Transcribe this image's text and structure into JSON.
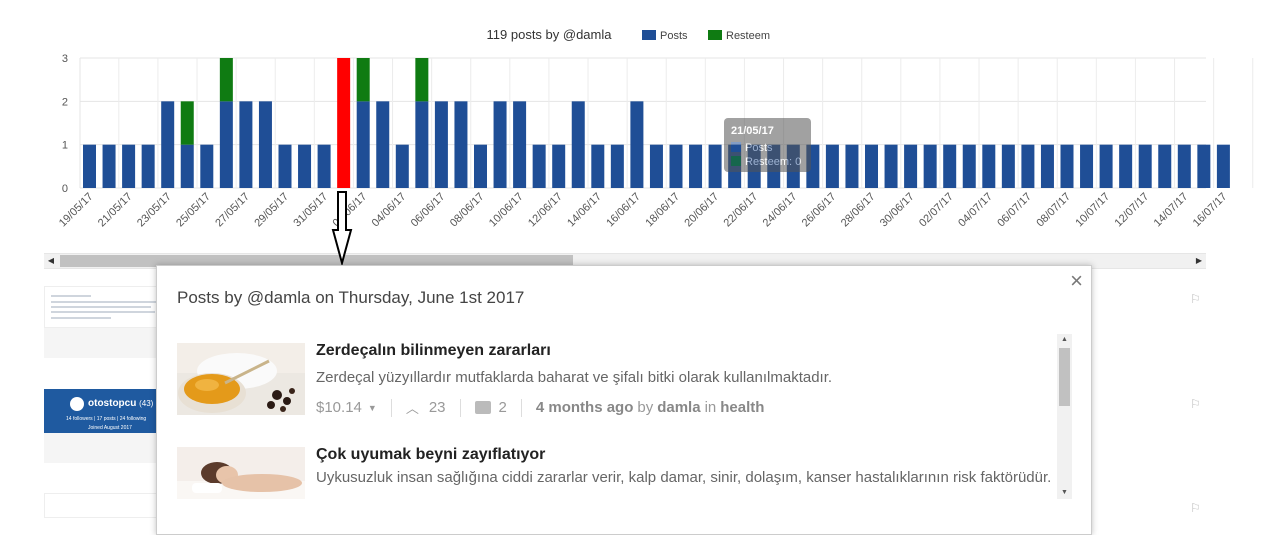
{
  "chart_data": {
    "type": "bar",
    "stacked": true,
    "title": "119 posts by @damla",
    "legend_position": "top-center",
    "grid": true,
    "ylim": [
      0,
      3
    ],
    "yticks": [
      "0",
      "1",
      "2",
      "3"
    ],
    "categories": [
      "19/05/17",
      "20/05/17",
      "21/05/17",
      "22/05/17",
      "23/05/17",
      "24/05/17",
      "25/05/17",
      "26/05/17",
      "27/05/17",
      "28/05/17",
      "29/05/17",
      "30/05/17",
      "31/05/17",
      "01/06/17",
      "02/06/17",
      "03/06/17",
      "04/06/17",
      "05/06/17",
      "06/06/17",
      "07/06/17",
      "08/06/17",
      "09/06/17",
      "10/06/17",
      "11/06/17",
      "12/06/17",
      "13/06/17",
      "14/06/17",
      "15/06/17",
      "16/06/17",
      "17/06/17",
      "18/06/17",
      "19/06/17",
      "20/06/17",
      "21/06/17",
      "22/06/17",
      "23/06/17",
      "24/06/17",
      "25/06/17",
      "26/06/17",
      "27/06/17",
      "28/06/17",
      "29/06/17",
      "30/06/17",
      "01/07/17",
      "02/07/17",
      "03/07/17",
      "04/07/17",
      "05/07/17",
      "06/07/17",
      "07/07/17",
      "08/07/17",
      "09/07/17",
      "10/07/17",
      "11/07/17",
      "12/07/17",
      "13/07/17",
      "14/07/17",
      "15/07/17",
      "16/07/17"
    ],
    "series": [
      {
        "name": "Posts",
        "color": "#1f4e96",
        "values": [
          1,
          1,
          1,
          1,
          2,
          1,
          1,
          2,
          2,
          2,
          1,
          1,
          1,
          3,
          2,
          2,
          1,
          2,
          2,
          2,
          1,
          2,
          2,
          1,
          1,
          2,
          1,
          1,
          2,
          1,
          1,
          1,
          1,
          1,
          1,
          1,
          1,
          1,
          1,
          1,
          1,
          1,
          1,
          1,
          1,
          1,
          1,
          1,
          1,
          1,
          1,
          1,
          1,
          1,
          1,
          1,
          1,
          1,
          1
        ]
      },
      {
        "name": "Resteem",
        "color": "#0f7b12",
        "values": [
          0,
          0,
          0,
          0,
          0,
          1,
          0,
          1,
          0,
          0,
          0,
          0,
          0,
          0,
          1,
          0,
          0,
          1,
          0,
          0,
          0,
          0,
          0,
          0,
          0,
          0,
          0,
          0,
          0,
          0,
          0,
          0,
          0,
          0,
          0,
          0,
          0,
          0,
          0,
          0,
          0,
          0,
          0,
          0,
          0,
          0,
          0,
          0,
          0,
          0,
          0,
          0,
          0,
          0,
          0,
          0,
          0,
          0,
          0
        ]
      }
    ],
    "highlight_index": 13,
    "highlight_color": "#ff0000",
    "tooltip": {
      "title": "21/05/17",
      "posts_label": "Posts",
      "resteem_label": "Resteem: 0"
    }
  },
  "modal": {
    "title": "Posts by @damla on Thursday, June 1st 2017",
    "close_symbol": "×",
    "posts": [
      {
        "title": "Zerdeçalın bilinmeyen zararları",
        "description": "Zerdeçal yüzyıllardır mutfaklarda baharat ve şifalı bitki olarak kullanılmaktadır.",
        "payout": "$10.14",
        "votes": "23",
        "comments": "2",
        "age": "4 months ago",
        "by_word": "by",
        "author": "damla",
        "in_word": "in",
        "category": "health"
      },
      {
        "title": "Çok uyumak beyni zayıflatıyor",
        "description": "Uykusuzluk insan sağlığına ciddi zararlar verir, kalp damar, sinir, dolaşım, kanser hastalıklarının risk faktörüdür."
      }
    ]
  },
  "background_cards": {
    "card2_name": "otostopcu",
    "card2_rep": "(43)",
    "card2_stats": "14 followers | 17 posts | 24 following",
    "card2_joined": "Joined August 2017"
  }
}
